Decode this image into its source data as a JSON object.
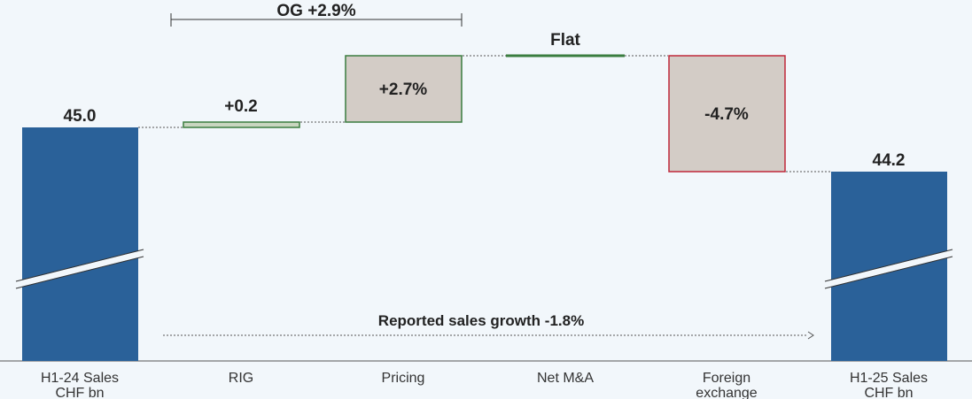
{
  "chart_data": {
    "type": "waterfall",
    "categories": [
      "H1-24 Sales\nCHF bn",
      "RIG",
      "Pricing",
      "Net M&A",
      "Foreign\nexchange",
      "H1-25 Sales\nCHF bn"
    ],
    "steps": [
      {
        "kind": "total",
        "value": 45.0,
        "label": "45.0"
      },
      {
        "kind": "delta",
        "value_pct": 0.2,
        "label": "+0.2"
      },
      {
        "kind": "delta",
        "value_pct": 2.7,
        "label": "+2.7%"
      },
      {
        "kind": "delta",
        "value_pct": 0.0,
        "label": "Flat"
      },
      {
        "kind": "delta",
        "value_pct": -4.7,
        "label": "-4.7%"
      },
      {
        "kind": "total",
        "value": 44.2,
        "label": "44.2"
      }
    ],
    "annotations": {
      "organic_growth": "OG +2.9%",
      "reported_growth": "Reported sales growth -1.8%"
    },
    "colors": {
      "total_fill": "#2a6199",
      "delta_fill": "#d3ccc6",
      "positive_border": "#3a7d3f",
      "negative_border": "#c0283a",
      "rig_fill": "#c9d6c0",
      "background": "#f2f7fb"
    }
  }
}
